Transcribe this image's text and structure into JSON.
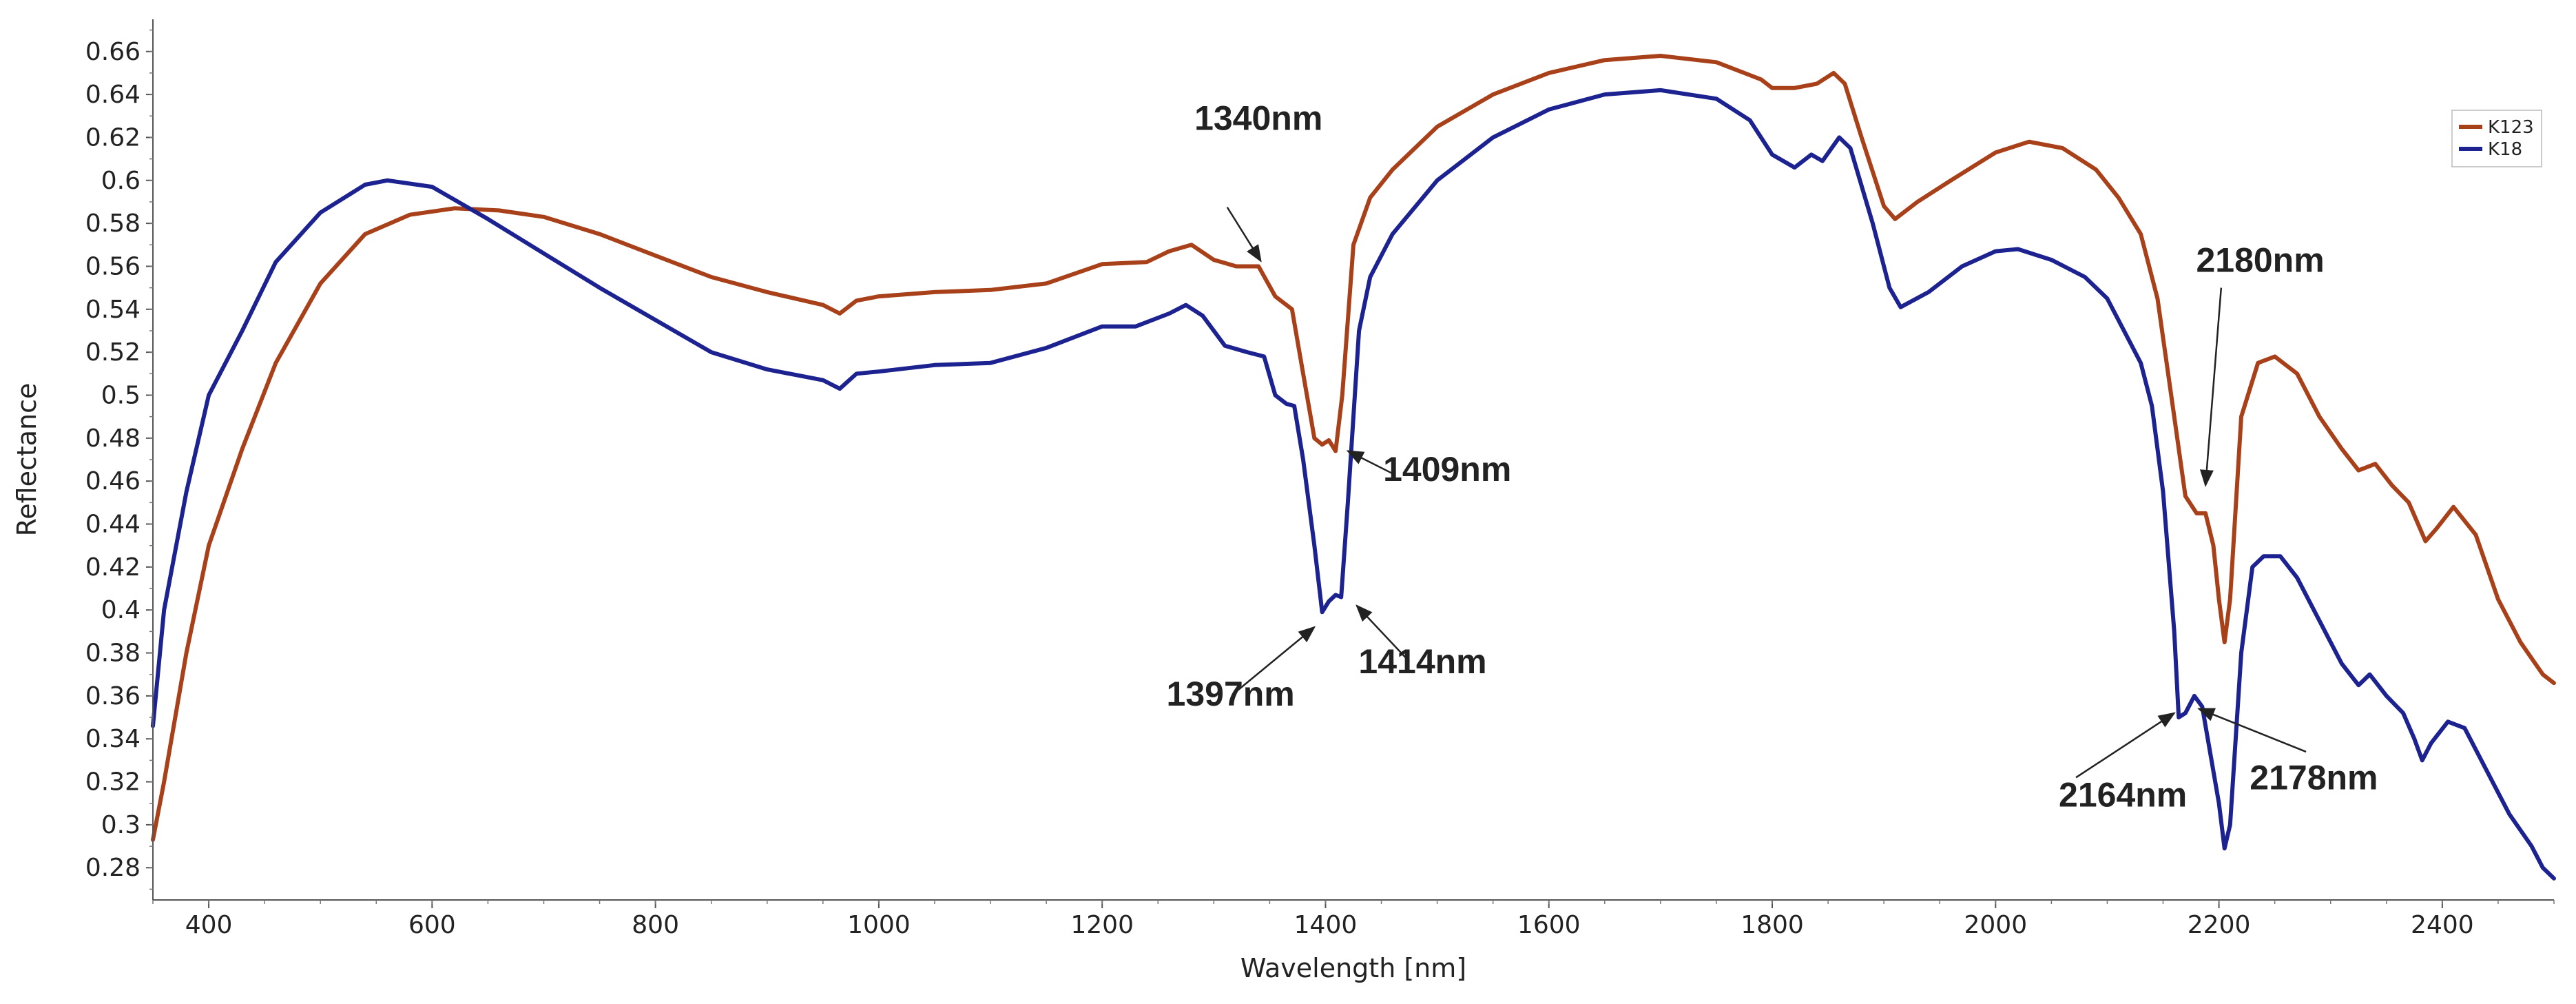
{
  "chart_data": {
    "type": "line",
    "title": "",
    "xlabel": "Wavelength [nm]",
    "ylabel": "Reflectance",
    "xlim": [
      350,
      2500
    ],
    "ylim": [
      0.265,
      0.675
    ],
    "grid": false,
    "legend_position": "top-right",
    "x_ticks": [
      400,
      600,
      800,
      1000,
      1200,
      1400,
      1600,
      1800,
      2000,
      2200,
      2400
    ],
    "y_ticks": [
      0.28,
      0.3,
      0.32,
      0.34,
      0.36,
      0.38,
      0.4,
      0.42,
      0.44,
      0.46,
      0.48,
      0.5,
      0.52,
      0.54,
      0.56,
      0.58,
      0.6,
      0.62,
      0.64,
      0.66
    ],
    "y_tick_labels": [
      "0.28",
      "0.3",
      "0.32",
      "0.34",
      "0.36",
      "0.38",
      "0.4",
      "0.42",
      "0.44",
      "0.46",
      "0.48",
      "0.5",
      "0.52",
      "0.54",
      "0.56",
      "0.58",
      "0.6",
      "0.62",
      "0.64",
      "0.66"
    ],
    "series": [
      {
        "name": "K123",
        "color": "#A8401A",
        "points": [
          [
            350,
            0.293
          ],
          [
            360,
            0.32
          ],
          [
            380,
            0.38
          ],
          [
            400,
            0.43
          ],
          [
            430,
            0.475
          ],
          [
            460,
            0.515
          ],
          [
            500,
            0.552
          ],
          [
            540,
            0.575
          ],
          [
            580,
            0.584
          ],
          [
            620,
            0.587
          ],
          [
            660,
            0.586
          ],
          [
            700,
            0.583
          ],
          [
            750,
            0.575
          ],
          [
            800,
            0.565
          ],
          [
            850,
            0.555
          ],
          [
            900,
            0.548
          ],
          [
            950,
            0.542
          ],
          [
            965,
            0.538
          ],
          [
            980,
            0.544
          ],
          [
            1000,
            0.546
          ],
          [
            1050,
            0.548
          ],
          [
            1100,
            0.549
          ],
          [
            1150,
            0.552
          ],
          [
            1200,
            0.561
          ],
          [
            1240,
            0.562
          ],
          [
            1260,
            0.567
          ],
          [
            1280,
            0.57
          ],
          [
            1300,
            0.563
          ],
          [
            1320,
            0.56
          ],
          [
            1340,
            0.56
          ],
          [
            1355,
            0.546
          ],
          [
            1370,
            0.54
          ],
          [
            1380,
            0.51
          ],
          [
            1390,
            0.48
          ],
          [
            1397,
            0.477
          ],
          [
            1403,
            0.479
          ],
          [
            1409,
            0.474
          ],
          [
            1415,
            0.5
          ],
          [
            1425,
            0.57
          ],
          [
            1440,
            0.592
          ],
          [
            1460,
            0.605
          ],
          [
            1500,
            0.625
          ],
          [
            1550,
            0.64
          ],
          [
            1600,
            0.65
          ],
          [
            1650,
            0.656
          ],
          [
            1700,
            0.658
          ],
          [
            1750,
            0.655
          ],
          [
            1790,
            0.647
          ],
          [
            1800,
            0.643
          ],
          [
            1820,
            0.643
          ],
          [
            1840,
            0.645
          ],
          [
            1855,
            0.65
          ],
          [
            1865,
            0.645
          ],
          [
            1880,
            0.62
          ],
          [
            1900,
            0.588
          ],
          [
            1910,
            0.582
          ],
          [
            1930,
            0.59
          ],
          [
            1960,
            0.6
          ],
          [
            2000,
            0.613
          ],
          [
            2030,
            0.618
          ],
          [
            2060,
            0.615
          ],
          [
            2090,
            0.605
          ],
          [
            2110,
            0.592
          ],
          [
            2130,
            0.575
          ],
          [
            2145,
            0.545
          ],
          [
            2160,
            0.49
          ],
          [
            2170,
            0.453
          ],
          [
            2180,
            0.445
          ],
          [
            2188,
            0.445
          ],
          [
            2195,
            0.43
          ],
          [
            2200,
            0.405
          ],
          [
            2205,
            0.385
          ],
          [
            2210,
            0.405
          ],
          [
            2220,
            0.49
          ],
          [
            2235,
            0.515
          ],
          [
            2250,
            0.518
          ],
          [
            2270,
            0.51
          ],
          [
            2290,
            0.49
          ],
          [
            2310,
            0.475
          ],
          [
            2325,
            0.465
          ],
          [
            2340,
            0.468
          ],
          [
            2355,
            0.458
          ],
          [
            2370,
            0.45
          ],
          [
            2385,
            0.432
          ],
          [
            2395,
            0.438
          ],
          [
            2410,
            0.448
          ],
          [
            2430,
            0.435
          ],
          [
            2450,
            0.405
          ],
          [
            2470,
            0.385
          ],
          [
            2490,
            0.37
          ],
          [
            2500,
            0.366
          ]
        ]
      },
      {
        "name": "K18",
        "color": "#1C228F",
        "points": [
          [
            350,
            0.346
          ],
          [
            360,
            0.4
          ],
          [
            380,
            0.455
          ],
          [
            400,
            0.5
          ],
          [
            430,
            0.53
          ],
          [
            460,
            0.562
          ],
          [
            500,
            0.585
          ],
          [
            540,
            0.598
          ],
          [
            560,
            0.6
          ],
          [
            600,
            0.597
          ],
          [
            650,
            0.582
          ],
          [
            700,
            0.566
          ],
          [
            750,
            0.55
          ],
          [
            800,
            0.535
          ],
          [
            850,
            0.52
          ],
          [
            900,
            0.512
          ],
          [
            950,
            0.507
          ],
          [
            965,
            0.503
          ],
          [
            980,
            0.51
          ],
          [
            1000,
            0.511
          ],
          [
            1050,
            0.514
          ],
          [
            1100,
            0.515
          ],
          [
            1150,
            0.522
          ],
          [
            1200,
            0.532
          ],
          [
            1230,
            0.532
          ],
          [
            1260,
            0.538
          ],
          [
            1275,
            0.542
          ],
          [
            1290,
            0.537
          ],
          [
            1310,
            0.523
          ],
          [
            1330,
            0.52
          ],
          [
            1345,
            0.518
          ],
          [
            1355,
            0.5
          ],
          [
            1365,
            0.496
          ],
          [
            1372,
            0.495
          ],
          [
            1380,
            0.47
          ],
          [
            1390,
            0.43
          ],
          [
            1397,
            0.399
          ],
          [
            1403,
            0.404
          ],
          [
            1409,
            0.407
          ],
          [
            1414,
            0.406
          ],
          [
            1420,
            0.45
          ],
          [
            1430,
            0.53
          ],
          [
            1440,
            0.555
          ],
          [
            1460,
            0.575
          ],
          [
            1500,
            0.6
          ],
          [
            1550,
            0.62
          ],
          [
            1600,
            0.633
          ],
          [
            1650,
            0.64
          ],
          [
            1700,
            0.642
          ],
          [
            1750,
            0.638
          ],
          [
            1780,
            0.628
          ],
          [
            1800,
            0.612
          ],
          [
            1820,
            0.606
          ],
          [
            1835,
            0.612
          ],
          [
            1845,
            0.609
          ],
          [
            1860,
            0.62
          ],
          [
            1870,
            0.615
          ],
          [
            1890,
            0.58
          ],
          [
            1905,
            0.55
          ],
          [
            1915,
            0.541
          ],
          [
            1940,
            0.548
          ],
          [
            1970,
            0.56
          ],
          [
            2000,
            0.567
          ],
          [
            2020,
            0.568
          ],
          [
            2050,
            0.563
          ],
          [
            2080,
            0.555
          ],
          [
            2100,
            0.545
          ],
          [
            2120,
            0.525
          ],
          [
            2130,
            0.515
          ],
          [
            2140,
            0.495
          ],
          [
            2150,
            0.455
          ],
          [
            2160,
            0.39
          ],
          [
            2164,
            0.35
          ],
          [
            2170,
            0.352
          ],
          [
            2178,
            0.36
          ],
          [
            2185,
            0.355
          ],
          [
            2190,
            0.34
          ],
          [
            2200,
            0.31
          ],
          [
            2205,
            0.289
          ],
          [
            2210,
            0.3
          ],
          [
            2220,
            0.38
          ],
          [
            2230,
            0.42
          ],
          [
            2240,
            0.425
          ],
          [
            2255,
            0.425
          ],
          [
            2270,
            0.415
          ],
          [
            2290,
            0.395
          ],
          [
            2310,
            0.375
          ],
          [
            2325,
            0.365
          ],
          [
            2335,
            0.37
          ],
          [
            2350,
            0.36
          ],
          [
            2365,
            0.352
          ],
          [
            2375,
            0.34
          ],
          [
            2382,
            0.33
          ],
          [
            2390,
            0.338
          ],
          [
            2405,
            0.348
          ],
          [
            2420,
            0.345
          ],
          [
            2440,
            0.325
          ],
          [
            2460,
            0.305
          ],
          [
            2480,
            0.29
          ],
          [
            2490,
            0.28
          ],
          [
            2500,
            0.275
          ]
        ]
      }
    ],
    "annotations": [
      {
        "label": "1340nm",
        "text_at": [
          1340,
          0.6235
        ],
        "arrow_from": [
          1312,
          0.5875
        ],
        "arrow_to": [
          1342,
          0.5625
        ]
      },
      {
        "label": "1409nm",
        "text_at": [
          1509,
          0.46
        ],
        "arrow_from": [
          1462,
          0.463
        ],
        "arrow_to": [
          1420,
          0.474
        ]
      },
      {
        "label": "1397nm",
        "text_at": [
          1315,
          0.3555
        ],
        "arrow_from": [
          1320,
          0.362
        ],
        "arrow_to": [
          1390,
          0.392
        ]
      },
      {
        "label": "1414nm",
        "text_at": [
          1487,
          0.3705
        ],
        "arrow_from": [
          1475,
          0.376
        ],
        "arrow_to": [
          1428,
          0.402
        ]
      },
      {
        "label": "2180nm",
        "text_at": [
          2237,
          0.5575
        ],
        "arrow_from": [
          2202,
          0.55
        ],
        "arrow_to": [
          2188,
          0.458
        ]
      },
      {
        "label": "2164nm",
        "text_at": [
          2114,
          0.3085
        ],
        "arrow_from": [
          2072,
          0.322
        ],
        "arrow_to": [
          2160,
          0.352
        ]
      },
      {
        "label": "2178nm",
        "text_at": [
          2285,
          0.3165
        ],
        "arrow_from": [
          2278,
          0.334
        ],
        "arrow_to": [
          2182,
          0.354
        ]
      }
    ]
  }
}
